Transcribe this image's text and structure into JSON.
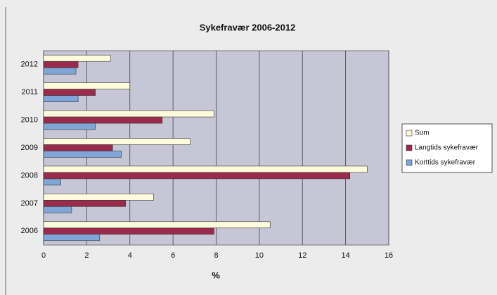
{
  "chart_data": {
    "type": "hbar",
    "title": "Sykefravær 2006-2012",
    "categories": [
      "2006",
      "2007",
      "2008",
      "2009",
      "2010",
      "2011",
      "2012"
    ],
    "series": [
      {
        "name": "Sum",
        "color": "#fdfbdc",
        "values": [
          10.5,
          5.1,
          15.0,
          6.8,
          7.9,
          4.0,
          3.1
        ]
      },
      {
        "name": "Langtids sykefravær",
        "color": "#9b2b4c",
        "values": [
          7.9,
          3.8,
          14.2,
          3.2,
          5.5,
          2.4,
          1.6
        ]
      },
      {
        "name": "Korttids sykefravær",
        "color": "#7fa6d6",
        "values": [
          2.6,
          1.3,
          0.8,
          3.6,
          2.4,
          1.6,
          1.5
        ]
      }
    ],
    "xlabel": "%",
    "xlim": [
      0,
      16
    ],
    "xticks": [
      0,
      2,
      4,
      6,
      8,
      10,
      12,
      14,
      16
    ],
    "grid": true,
    "legend": "right"
  }
}
